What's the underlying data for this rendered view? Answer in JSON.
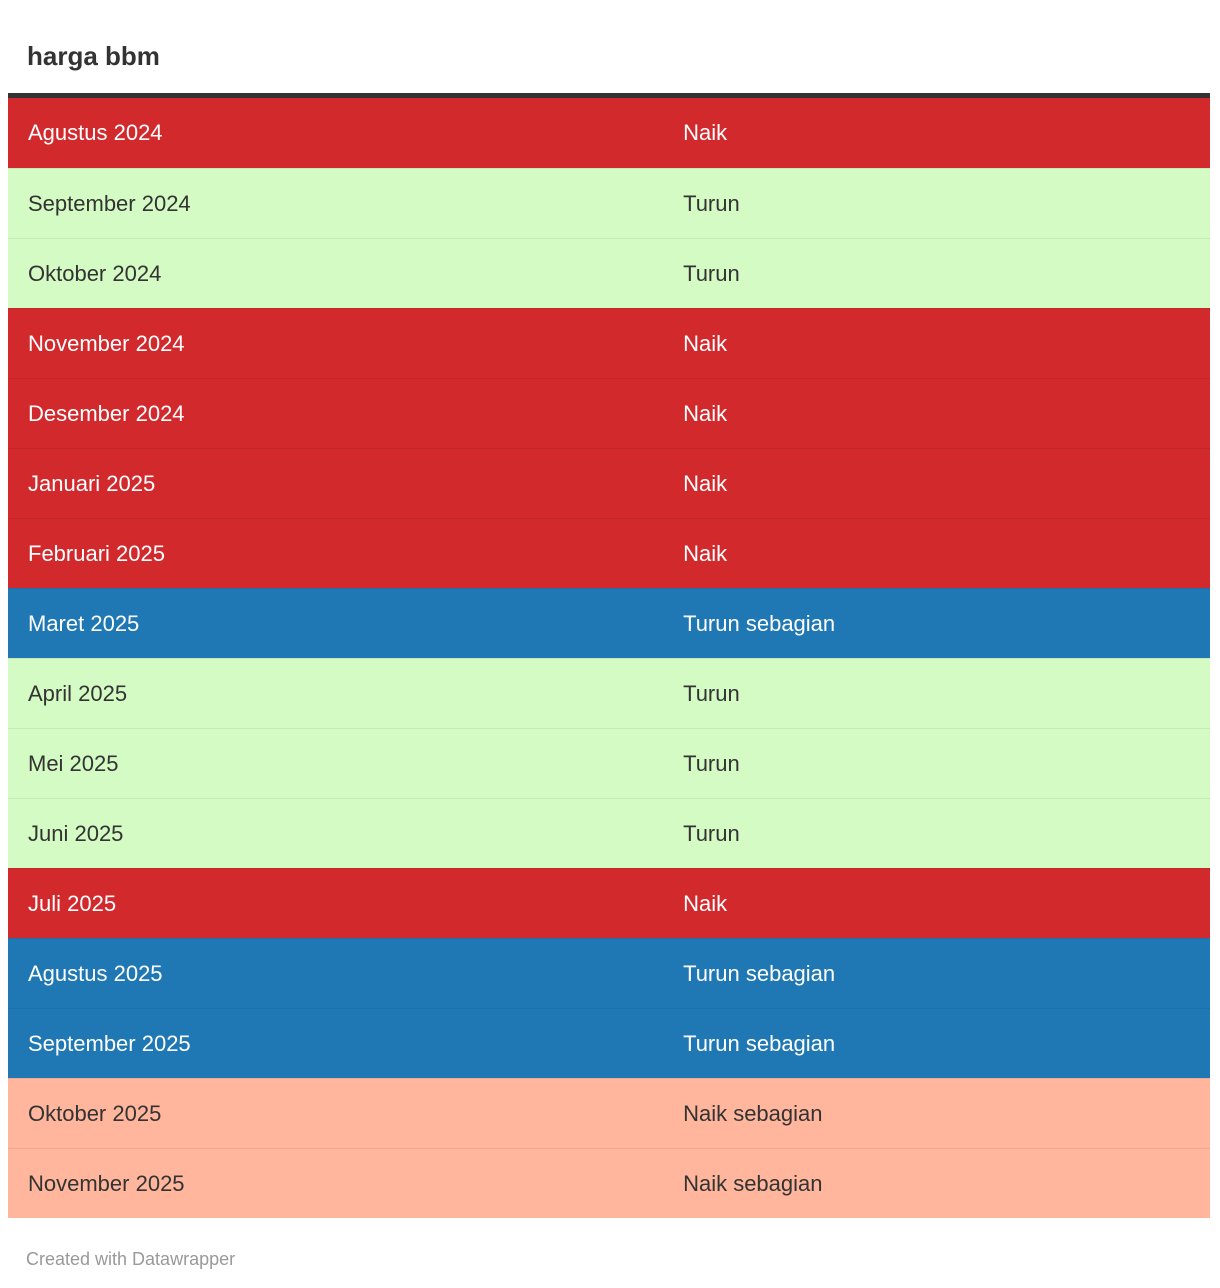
{
  "header": {
    "title": "harga bbm"
  },
  "chart_data": {
    "type": "table",
    "title": "harga bbm",
    "columns": [
      "month",
      "status"
    ],
    "rows": [
      {
        "month": "Agustus 2024",
        "status": "Naik"
      },
      {
        "month": "September 2024",
        "status": "Turun"
      },
      {
        "month": "Oktober 2024",
        "status": "Turun"
      },
      {
        "month": "November 2024",
        "status": "Naik"
      },
      {
        "month": "Desember 2024",
        "status": "Naik"
      },
      {
        "month": "Januari 2025",
        "status": "Naik"
      },
      {
        "month": "Februari 2025",
        "status": "Naik"
      },
      {
        "month": "Maret 2025",
        "status": "Turun sebagian"
      },
      {
        "month": "April 2025",
        "status": "Turun"
      },
      {
        "month": "Mei 2025",
        "status": "Turun"
      },
      {
        "month": "Juni 2025",
        "status": "Turun"
      },
      {
        "month": "Juli 2025",
        "status": "Naik"
      },
      {
        "month": "Agustus 2025",
        "status": "Turun sebagian"
      },
      {
        "month": "September 2025",
        "status": "Turun sebagian"
      },
      {
        "month": "Oktober 2025",
        "status": "Naik sebagian"
      },
      {
        "month": "November 2025",
        "status": "Naik sebagian"
      }
    ],
    "status_colors": {
      "Naik": "#d2292d",
      "Turun": "#d5fbc5",
      "Turun sebagian": "#1f78b4",
      "Naik sebagian": "#ffb69c"
    },
    "status_text_colors": {
      "Naik": "#ffffff",
      "Turun": "#333333",
      "Turun sebagian": "#ffffff",
      "Naik sebagian": "#333333"
    },
    "layout": {
      "header_rule_color": "#333333",
      "row_separator": "rgba(0,0,0,0.07)",
      "grid": "off",
      "legend": "none"
    }
  },
  "footer": {
    "attribution": "Created with Datawrapper"
  }
}
